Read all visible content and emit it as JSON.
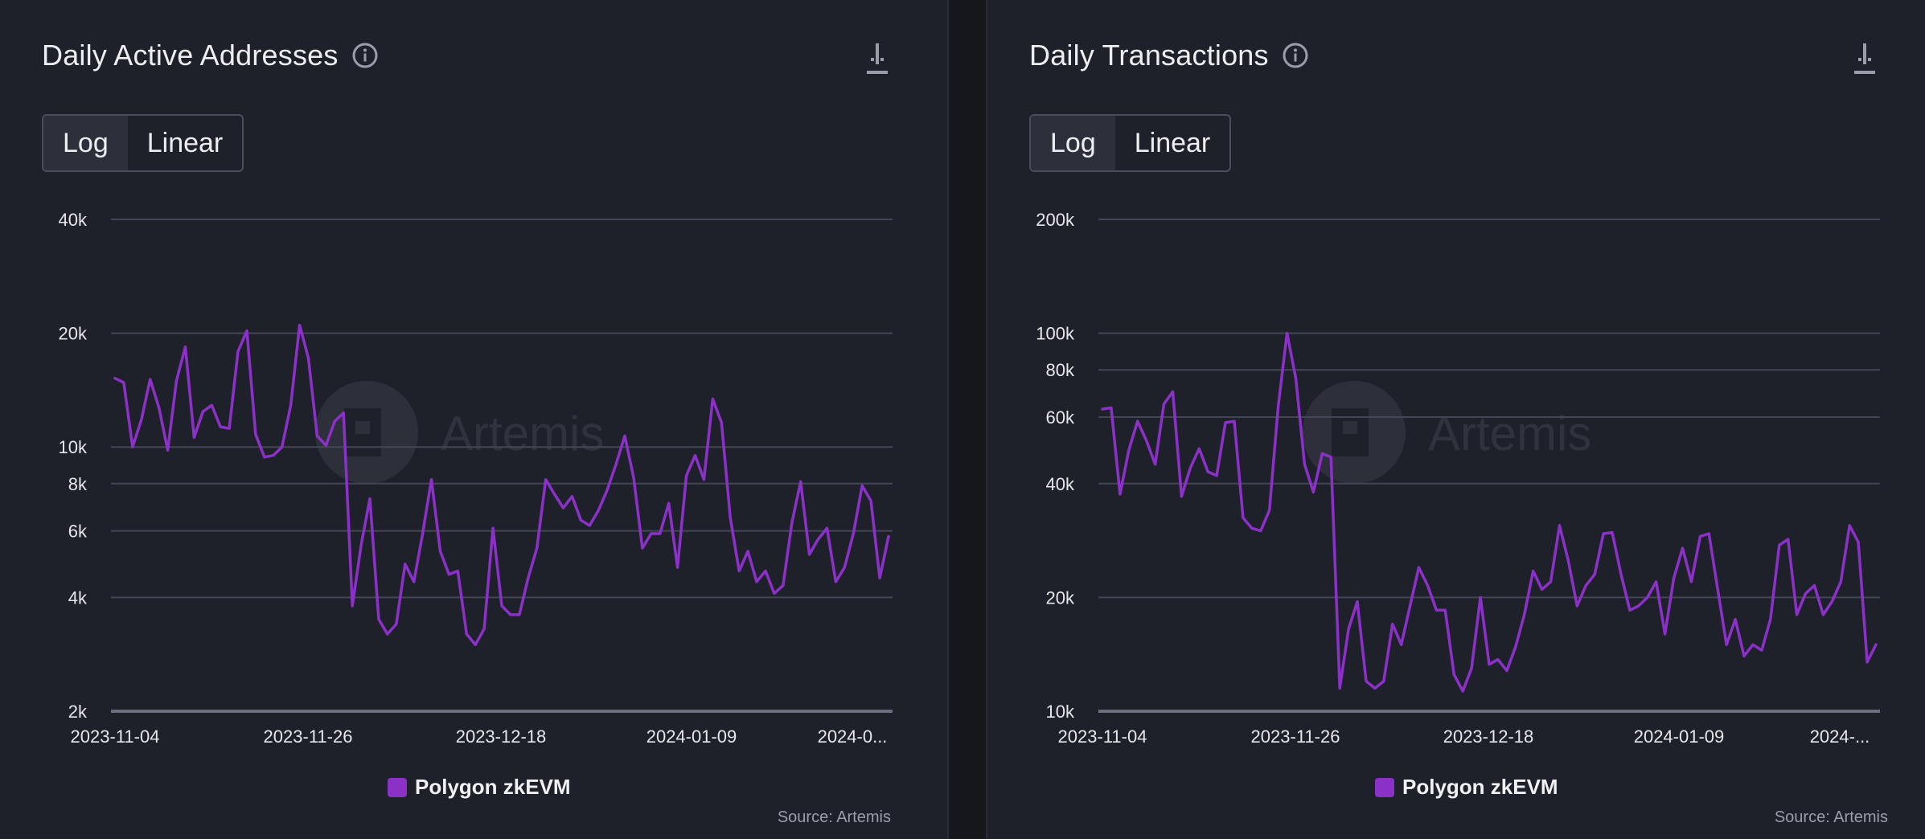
{
  "brand": {
    "accent": "#8b31c7",
    "watermark": "Artemis"
  },
  "charts": [
    {
      "title": "Daily Active Addresses",
      "toggle": {
        "options": [
          "Log",
          "Linear"
        ],
        "selected": "Log"
      },
      "legend_label": "Polygon zkEVM",
      "source": "Source: Artemis"
    },
    {
      "title": "Daily Transactions",
      "toggle": {
        "options": [
          "Log",
          "Linear"
        ],
        "selected": "Log"
      },
      "legend_label": "Polygon zkEVM",
      "source": "Source: Artemis"
    }
  ],
  "chart_data": [
    {
      "type": "line",
      "title": "Daily Active Addresses",
      "scale": "log",
      "ylim": [
        2000,
        40000
      ],
      "y_ticks": [
        2000,
        4000,
        6000,
        8000,
        10000,
        20000,
        40000
      ],
      "y_tick_labels": [
        "2k",
        "4k",
        "6k",
        "8k",
        "10k",
        "20k",
        "40k"
      ],
      "x_tick_labels": [
        "2023-11-04",
        "2023-11-26",
        "2023-12-18",
        "2024-01-09",
        "2024-0..."
      ],
      "grid": true,
      "legend_position": "bottom",
      "series": [
        {
          "name": "Polygon zkEVM",
          "color": "#8b31c7",
          "values": [
            15200,
            14800,
            10000,
            11800,
            15100,
            12700,
            9800,
            15000,
            18400,
            10600,
            12400,
            12900,
            11300,
            11200,
            17900,
            20300,
            10800,
            9400,
            9500,
            10000,
            12900,
            21000,
            17200,
            10700,
            10100,
            11700,
            12300,
            3800,
            5500,
            7300,
            3500,
            3200,
            3400,
            4900,
            4400,
            5900,
            8200,
            5300,
            4600,
            4700,
            3200,
            3000,
            3300,
            6100,
            3800,
            3600,
            3600,
            4500,
            5400,
            8200,
            7500,
            6900,
            7400,
            6400,
            6200,
            6800,
            7700,
            9000,
            10700,
            8300,
            5400,
            5900,
            5900,
            7100,
            4800,
            8400,
            9500,
            8200,
            13400,
            11600,
            6500,
            4700,
            5300,
            4400,
            4700,
            4100,
            4300,
            6300,
            8100,
            5200,
            5700,
            6100,
            4400,
            4800,
            5900,
            7900,
            7200,
            4500,
            5800
          ]
        }
      ]
    },
    {
      "type": "line",
      "title": "Daily Transactions",
      "scale": "log",
      "ylim": [
        10000,
        200000
      ],
      "y_ticks": [
        10000,
        20000,
        40000,
        60000,
        80000,
        100000,
        200000
      ],
      "y_tick_labels": [
        "10k",
        "20k",
        "40k",
        "60k",
        "80k",
        "100k",
        "200k"
      ],
      "x_tick_labels": [
        "2023-11-04",
        "2023-11-26",
        "2023-12-18",
        "2024-01-09",
        "2024-..."
      ],
      "grid": true,
      "legend_position": "bottom",
      "series": [
        {
          "name": "Polygon zkEVM",
          "color": "#8b31c7",
          "values": [
            63000,
            63500,
            37500,
            49000,
            58500,
            52000,
            45000,
            65000,
            70000,
            37000,
            44000,
            49500,
            43000,
            42000,
            58000,
            58500,
            32500,
            30500,
            30000,
            34000,
            64000,
            100000,
            76000,
            45000,
            38000,
            48000,
            47000,
            11500,
            16500,
            19500,
            12000,
            11500,
            12000,
            17000,
            15000,
            19000,
            24000,
            21500,
            18500,
            18500,
            12500,
            11300,
            13000,
            20000,
            13300,
            13700,
            12800,
            14800,
            18000,
            23500,
            21000,
            22000,
            31000,
            25000,
            19000,
            21500,
            23000,
            29500,
            29700,
            23000,
            18500,
            19000,
            20000,
            22000,
            16000,
            22500,
            27000,
            22000,
            29000,
            29500,
            21000,
            15000,
            17500,
            14000,
            15000,
            14500,
            17500,
            27500,
            28500,
            18000,
            20500,
            21500,
            18000,
            19500,
            22000,
            31000,
            28000,
            13500,
            15000
          ]
        }
      ]
    }
  ]
}
